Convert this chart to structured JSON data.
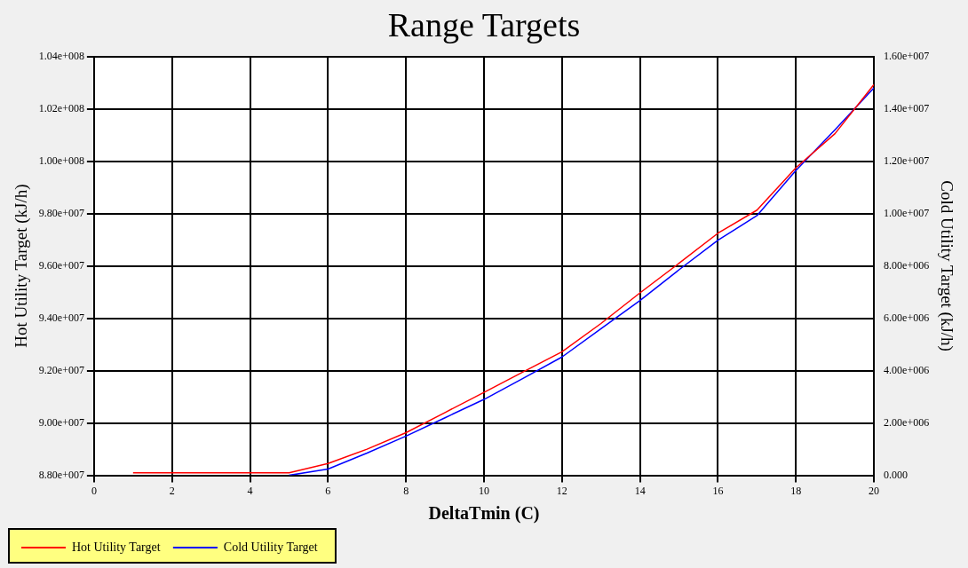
{
  "chart_data": {
    "type": "line",
    "title": "Range Targets",
    "xlabel": "DeltaTmin (C)",
    "ylabel": "Hot Utility Target (kJ/h)",
    "y2label": "Cold Utility Target (kJ/h)",
    "x": [
      1,
      2,
      3,
      4,
      5,
      6,
      7,
      8,
      9,
      10,
      11,
      12,
      13,
      14,
      15,
      16,
      17,
      18,
      19,
      20
    ],
    "series": [
      {
        "name": "Hot Utility Target",
        "color": "#ff0000",
        "values": [
          88100000,
          88100000,
          88100000,
          88100000,
          88100000,
          88450000,
          89000000,
          89630000,
          90400000,
          91170000,
          91950000,
          92720000,
          93800000,
          94970000,
          96100000,
          97250000,
          98130000,
          99750000,
          101050000,
          102930000
        ]
      },
      {
        "name": "Cold Utility Target",
        "color": "#0000ff",
        "axis": "y2",
        "values": [
          null,
          null,
          null,
          null,
          0,
          240000,
          850000,
          1500000,
          2200000,
          2900000,
          3700000,
          4520000,
          5600000,
          6680000,
          7850000,
          8980000,
          9920000,
          11650000,
          13200000,
          14800000
        ]
      }
    ],
    "xlim": [
      0,
      20
    ],
    "xticks": [
      0,
      2,
      4,
      6,
      8,
      10,
      12,
      14,
      16,
      18,
      20
    ],
    "ylim": [
      88000000,
      104000000
    ],
    "yticks": [
      {
        "value": 88000000,
        "label": "8.80e+007"
      },
      {
        "value": 90000000,
        "label": "9.00e+007"
      },
      {
        "value": 92000000,
        "label": "9.20e+007"
      },
      {
        "value": 94000000,
        "label": "9.40e+007"
      },
      {
        "value": 96000000,
        "label": "9.60e+007"
      },
      {
        "value": 98000000,
        "label": "9.80e+007"
      },
      {
        "value": 100000000,
        "label": "1.00e+008"
      },
      {
        "value": 102000000,
        "label": "1.02e+008"
      },
      {
        "value": 104000000,
        "label": "1.04e+008"
      }
    ],
    "y2lim": [
      0,
      16000000
    ],
    "y2ticks": [
      {
        "value": 0,
        "label": "0.000"
      },
      {
        "value": 2000000,
        "label": "2.00e+006"
      },
      {
        "value": 4000000,
        "label": "4.00e+006"
      },
      {
        "value": 6000000,
        "label": "6.00e+006"
      },
      {
        "value": 8000000,
        "label": "8.00e+006"
      },
      {
        "value": 10000000,
        "label": "1.00e+007"
      },
      {
        "value": 12000000,
        "label": "1.20e+007"
      },
      {
        "value": 14000000,
        "label": "1.40e+007"
      },
      {
        "value": 16000000,
        "label": "1.60e+007"
      }
    ],
    "grid": true,
    "legend": "bottom left",
    "marker": "none",
    "line_style": "solid"
  }
}
